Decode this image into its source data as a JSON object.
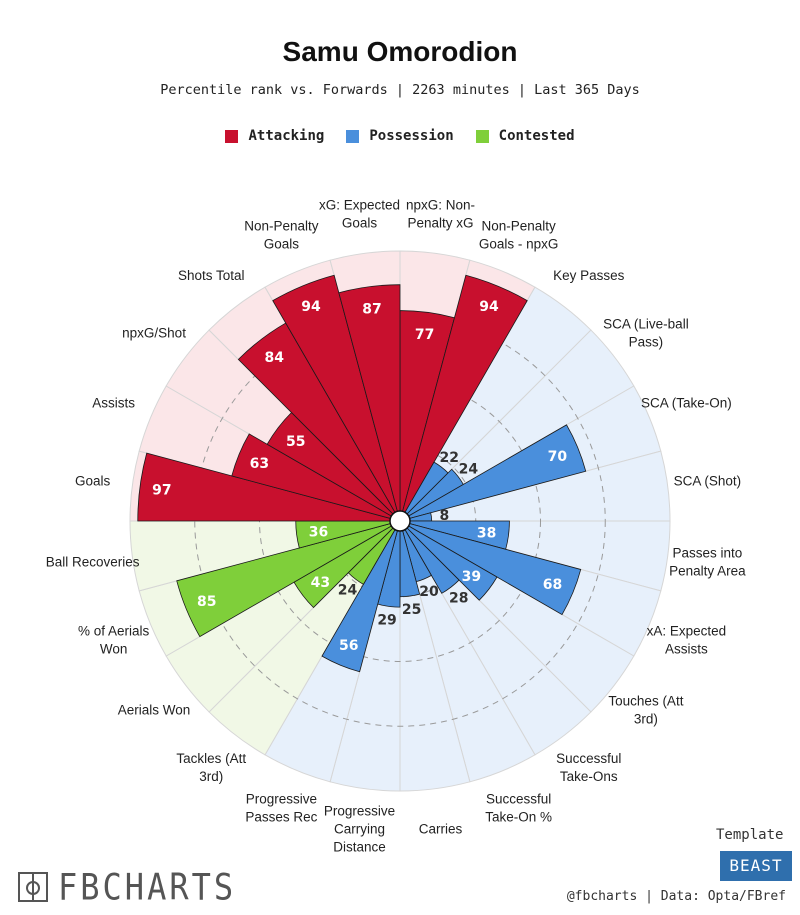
{
  "header": {
    "title": "Samu Omorodion",
    "subtitle": "Percentile rank vs. Forwards | 2263 minutes | Last 365 Days"
  },
  "legend": [
    {
      "label": "Attacking",
      "color": "#c8102e"
    },
    {
      "label": "Possession",
      "color": "#4a8fdc"
    },
    {
      "label": "Contested",
      "color": "#7fcf3a"
    }
  ],
  "chart_data": {
    "type": "polar-bar",
    "title": "Samu Omorodion",
    "subtitle": "Percentile rank vs. Forwards | 2263 minutes | Last 365 Days",
    "rlim": [
      0,
      100
    ],
    "grid": true,
    "legend_position": "top",
    "categories_colors": {
      "Attacking": {
        "bar": "#c8102e",
        "background": "#fbe6e8"
      },
      "Possession": {
        "bar": "#4a8fdc",
        "background": "#e7f0fb"
      },
      "Contested": {
        "bar": "#7fcf3a",
        "background": "#f1f8e6"
      }
    },
    "series": [
      {
        "label": "npxG: Non-\nPenalty xG",
        "value": 77,
        "category": "Attacking"
      },
      {
        "label": "Non-Penalty\nGoals - npxG",
        "value": 94,
        "category": "Attacking"
      },
      {
        "label": "Key Passes",
        "value": 22,
        "category": "Possession"
      },
      {
        "label": "SCA (Live-ball\nPass)",
        "value": 24,
        "category": "Possession"
      },
      {
        "label": "SCA (Take-On)",
        "value": 70,
        "category": "Possession"
      },
      {
        "label": "SCA (Shot)",
        "value": 8,
        "category": "Possession"
      },
      {
        "label": "Passes into\nPenalty Area",
        "value": 38,
        "category": "Possession"
      },
      {
        "label": "xA: Expected\nAssists",
        "value": 68,
        "category": "Possession"
      },
      {
        "label": "Touches (Att\n3rd)",
        "value": 39,
        "category": "Possession"
      },
      {
        "label": "Successful\nTake-Ons",
        "value": 28,
        "category": "Possession"
      },
      {
        "label": "Successful\nTake-On %",
        "value": 20,
        "category": "Possession"
      },
      {
        "label": "Carries",
        "value": 25,
        "category": "Possession"
      },
      {
        "label": "Progressive\nCarrying\nDistance",
        "value": 29,
        "category": "Possession"
      },
      {
        "label": "Progressive\nPasses Rec",
        "value": 56,
        "category": "Possession"
      },
      {
        "label": "Tackles (Att\n3rd)",
        "value": 24,
        "category": "Contested"
      },
      {
        "label": "Aerials Won",
        "value": 43,
        "category": "Contested"
      },
      {
        "label": "% of Aerials\nWon",
        "value": 85,
        "category": "Contested"
      },
      {
        "label": "Ball Recoveries",
        "value": 36,
        "category": "Contested"
      },
      {
        "label": "Goals",
        "value": 97,
        "category": "Attacking"
      },
      {
        "label": "Assists",
        "value": 63,
        "category": "Attacking"
      },
      {
        "label": "npxG/Shot",
        "value": 55,
        "category": "Attacking"
      },
      {
        "label": "Shots Total",
        "value": 84,
        "category": "Attacking"
      },
      {
        "label": "Non-Penalty\nGoals",
        "value": 94,
        "category": "Attacking"
      },
      {
        "label": "xG: Expected\nGoals",
        "value": 87,
        "category": "Attacking"
      }
    ]
  },
  "footer": {
    "brand": "FBCHARTS",
    "template_label": "Template",
    "template_name": "BEAST",
    "credit": "@fbcharts | Data: Opta/FBref"
  }
}
